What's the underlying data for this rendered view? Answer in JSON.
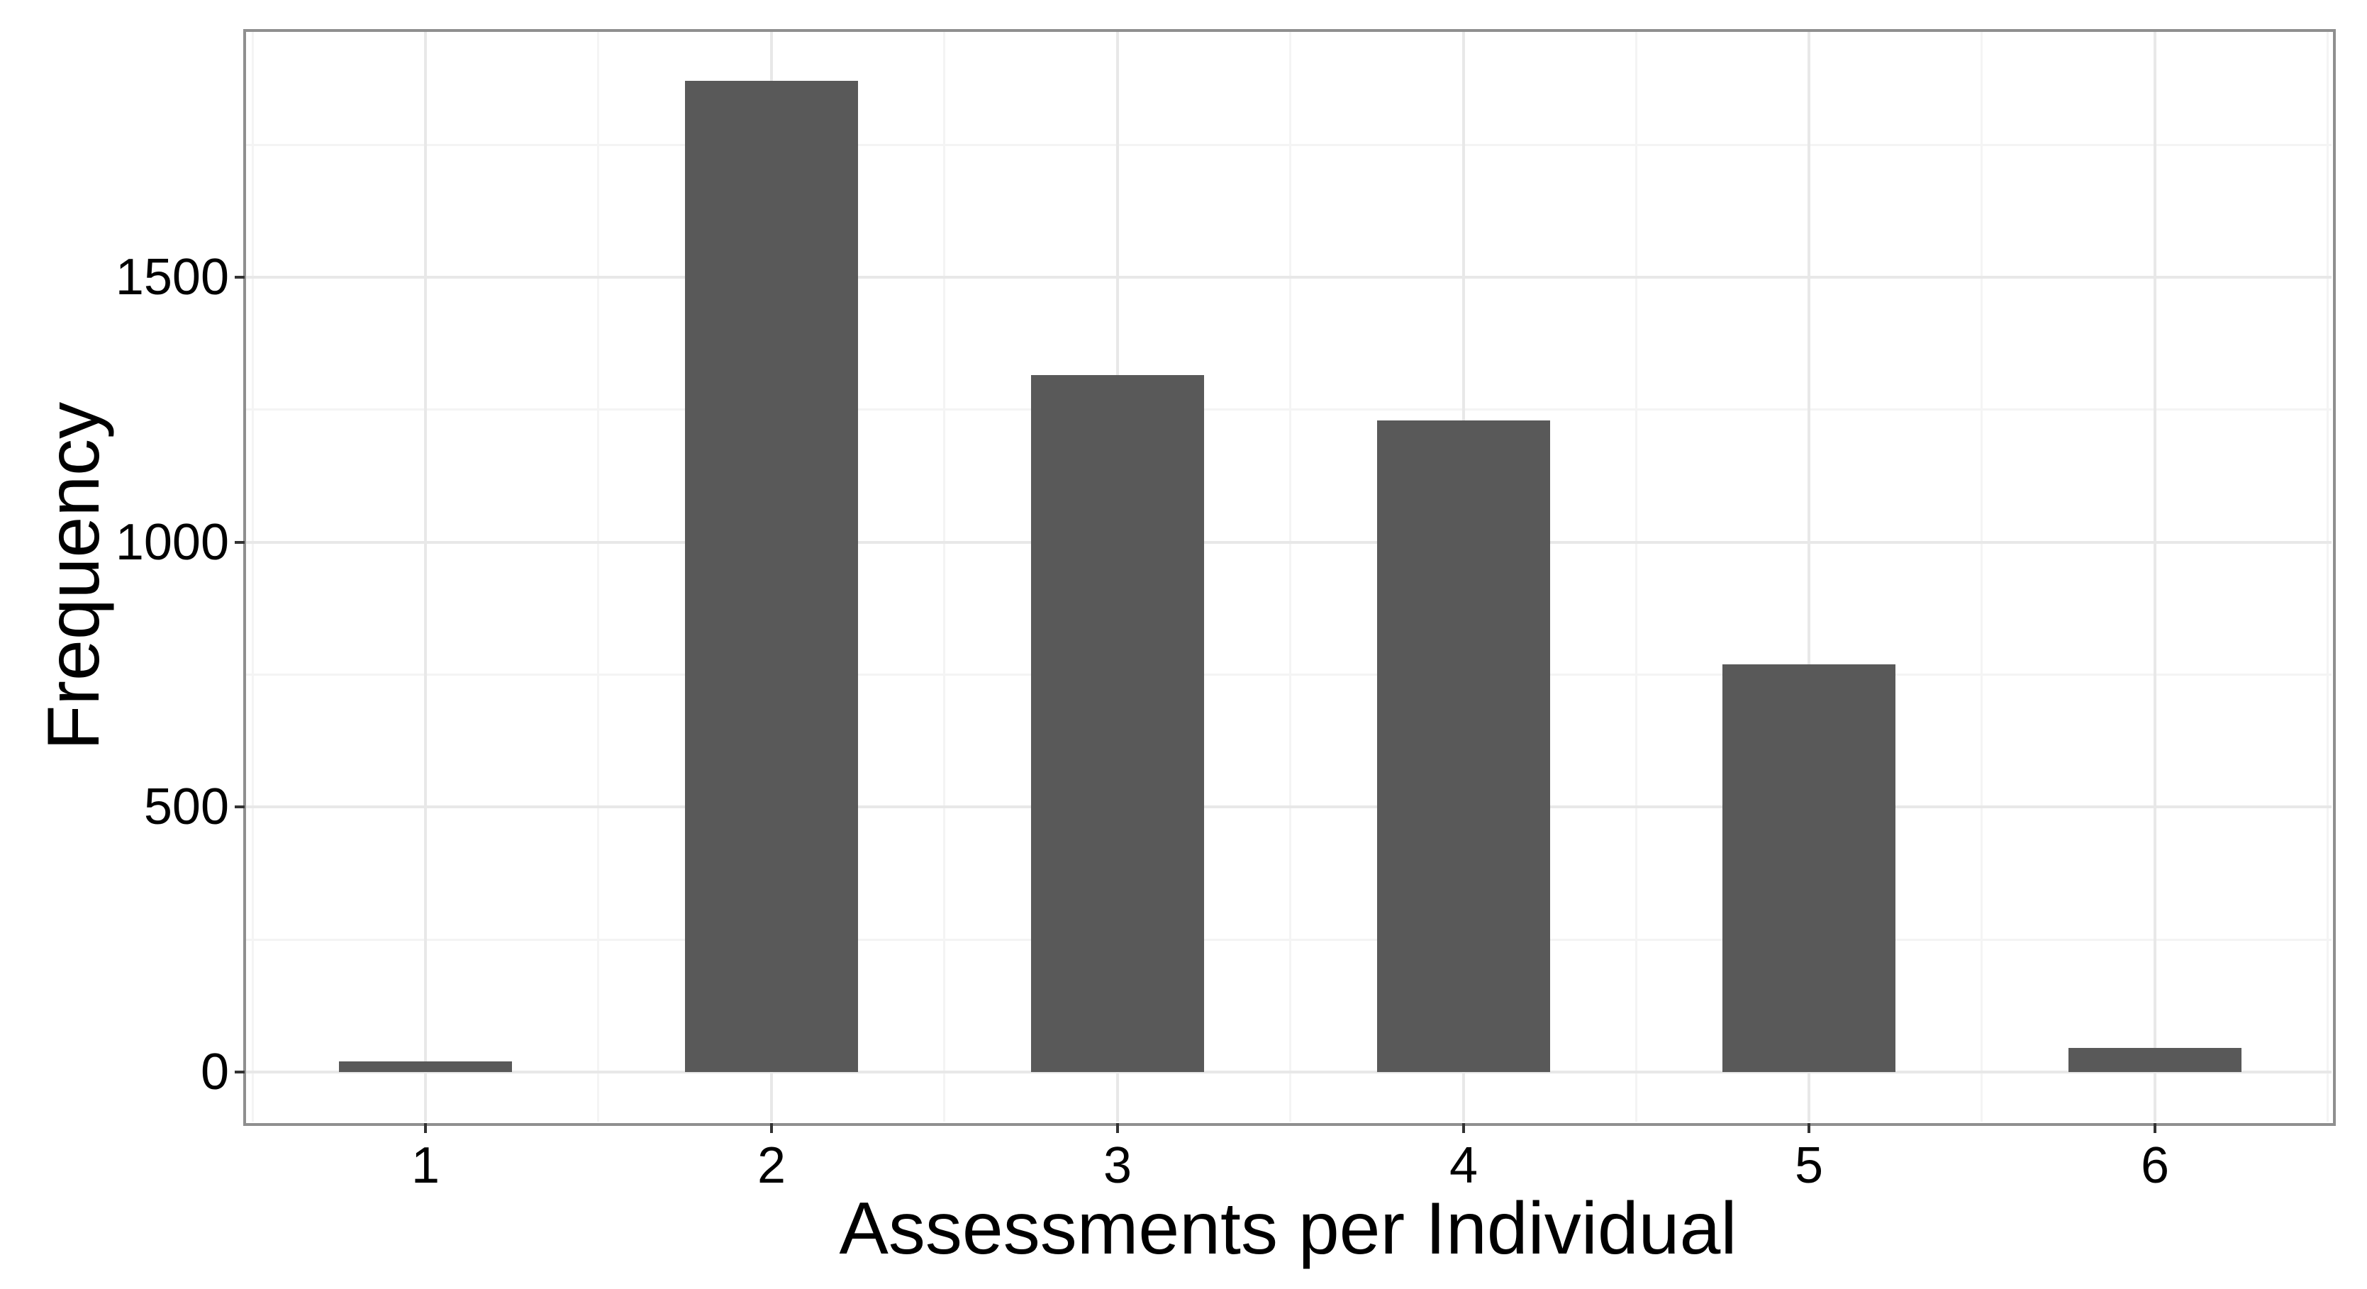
{
  "chart_data": {
    "type": "bar",
    "title": "",
    "xlabel": "Assessments per Individual",
    "ylabel": "Frequency",
    "categories": [
      "1",
      "2",
      "3",
      "4",
      "5",
      "6"
    ],
    "values": [
      20,
      1870,
      1315,
      1230,
      770,
      45
    ],
    "y_tick_values": [
      0,
      500,
      1000,
      1500
    ],
    "y_tick_labels": [
      "0",
      "500",
      "1000",
      "1500"
    ],
    "y_minor_values": [
      250,
      750,
      1250,
      1750
    ],
    "ylim": [
      -95,
      1966
    ],
    "bar_width_fraction": 0.5,
    "legend": "none",
    "grid": "major and minor, light gray on white panel",
    "colors": {
      "bar_fill": "#595959",
      "panel_background": "#ffffff",
      "panel_border": "#8f8f8f",
      "grid_major": "#e8e8e8",
      "grid_minor": "#f4f4f4",
      "tick_mark": "#333333",
      "text": "#000000",
      "page_background": "#ffffff"
    }
  }
}
